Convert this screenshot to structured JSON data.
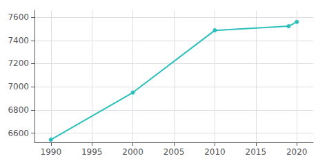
{
  "chart_data": {
    "type": "line",
    "x": [
      1990,
      2000,
      2010,
      2019,
      2020
    ],
    "values": [
      6543,
      6950,
      7487,
      7523,
      7560
    ],
    "color": "#2BBFBC",
    "marker": "circle",
    "xlim": [
      1988,
      2022
    ],
    "xticks": [
      1990,
      1995,
      2000,
      2005,
      2010,
      2015,
      2020
    ],
    "ylim": [
      6520,
      7660
    ],
    "yticks": [
      6600,
      6800,
      7000,
      7200,
      7400,
      7600
    ],
    "grid": true
  }
}
